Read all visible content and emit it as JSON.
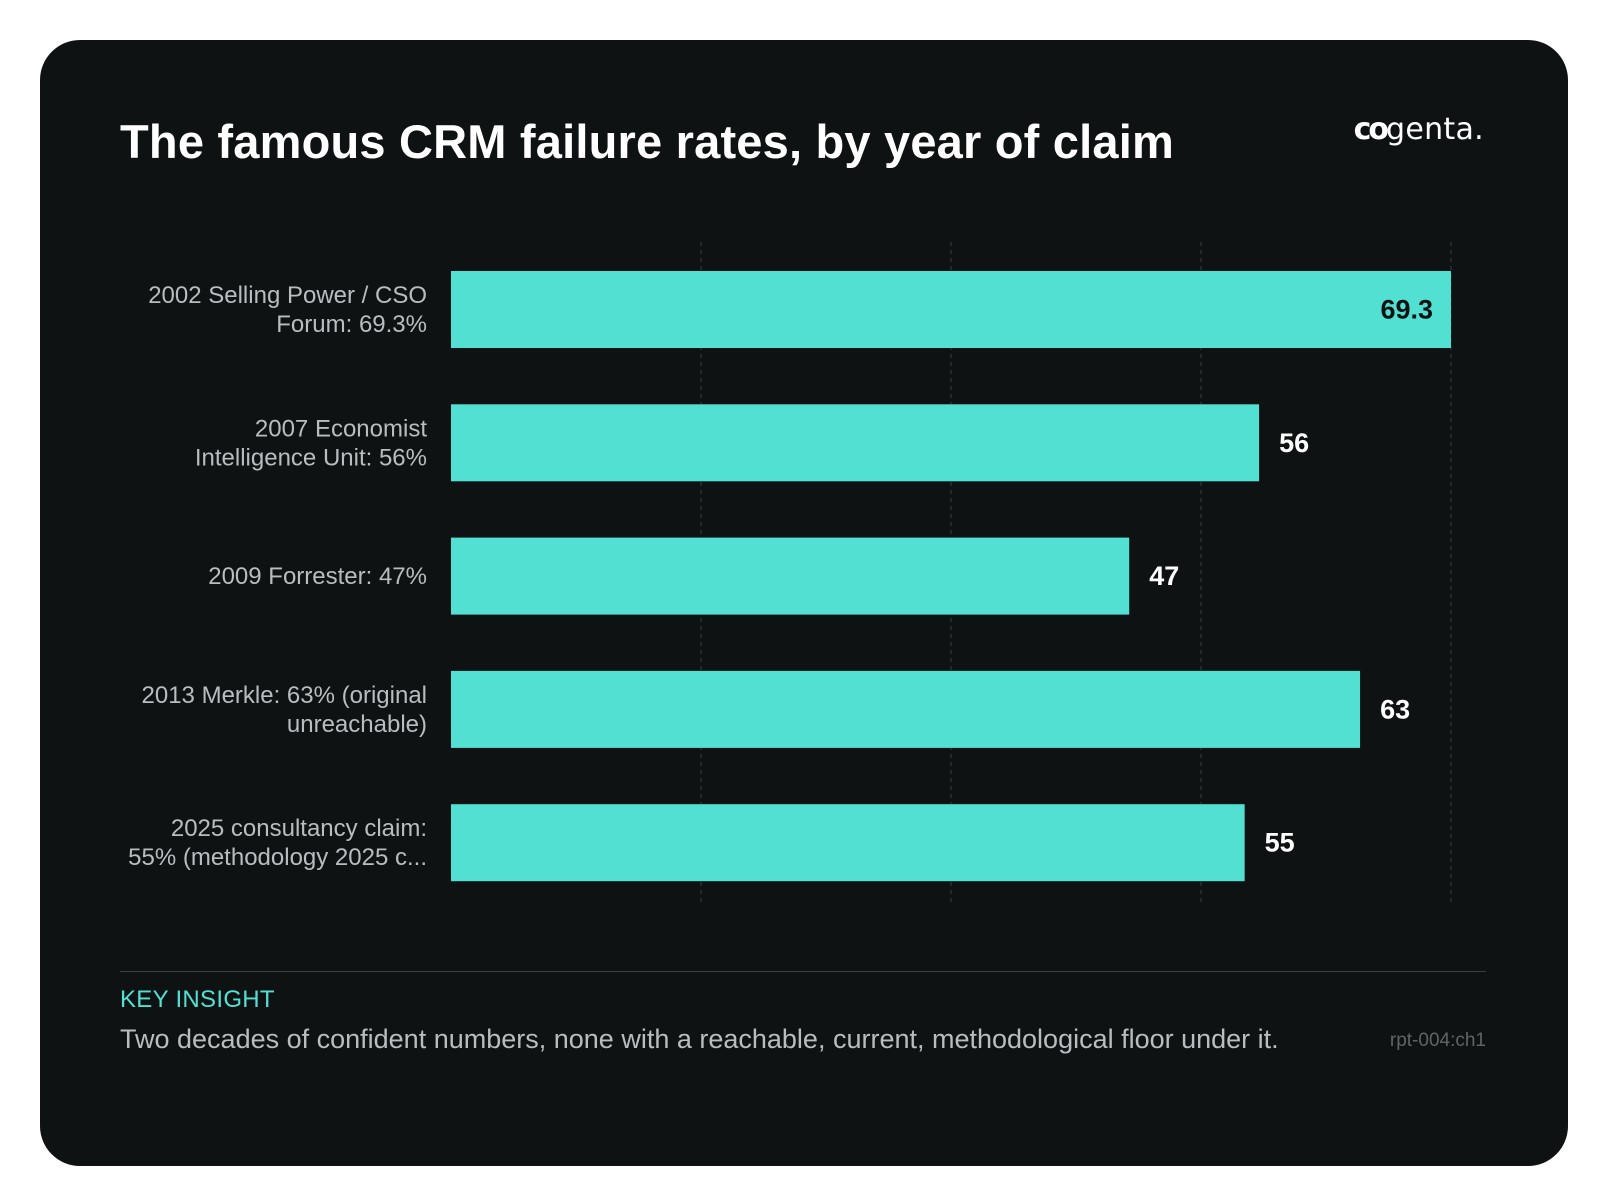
{
  "header": {
    "title": "The famous CRM failure rates, by year of claim",
    "logo_text_bold": "co",
    "logo_text_rest": "genta."
  },
  "chart_data": {
    "type": "bar",
    "orientation": "horizontal",
    "categories": [
      [
        "2002 Selling Power / CSO",
        "Forum: 69.3%"
      ],
      [
        "2007 Economist",
        "Intelligence Unit: 56%"
      ],
      [
        "2009 Forrester: 47%"
      ],
      [
        "2013 Merkle: 63% (original",
        "unreachable)"
      ],
      [
        "2025 consultancy claim:",
        "55% (methodology 2025 c..."
      ]
    ],
    "values": [
      69.3,
      56,
      47,
      63,
      55
    ],
    "data_labels": [
      "69.3",
      "56",
      "47",
      "63",
      "55"
    ],
    "xlim": [
      0,
      69.3
    ],
    "grid": true,
    "bar_color": "#52e0d3",
    "label_inside_color": "#0f1213",
    "label_outside_color": "#ffffff"
  },
  "insight": {
    "label": "KEY INSIGHT",
    "text": "Two decades of confident numbers, none with a reachable, current, methodological floor under it.",
    "ref": "rpt-004:ch1"
  },
  "colors": {
    "background": "#0f1213",
    "accent": "#52e0d3",
    "muted_text": "#b9bdbf"
  }
}
